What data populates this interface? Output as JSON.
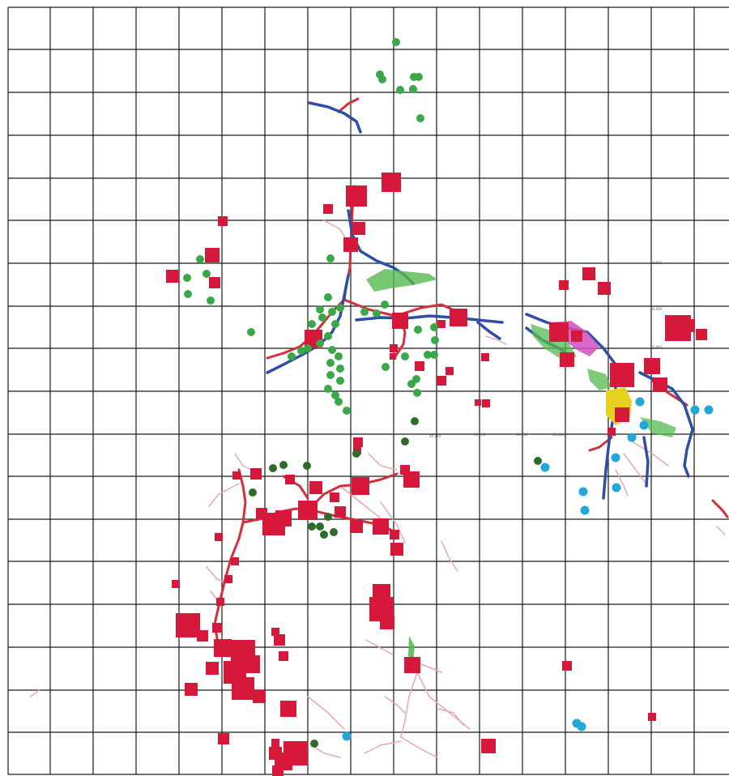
{
  "map": {
    "background": "#ffffff",
    "grid": {
      "color": "#1a1a1a",
      "visible": true
    },
    "colors": {
      "major_line": "#d42f3a",
      "minor_line": "#e8a8ad",
      "blue_line": "#2d4fa8",
      "red_square": "#d6193a",
      "green_dot": "#3aa848",
      "dark_green_dot": "#2f6b2a",
      "cyan_dot": "#22a7d8",
      "yellow_area": "#e6d21e",
      "magenta_area": "#d24fbf",
      "green_area": "#56b94f"
    },
    "labels": [
      "50.250",
      "50.260",
      "50.330",
      "50.300",
      "50.500",
      "50.450",
      "50.400"
    ]
  }
}
